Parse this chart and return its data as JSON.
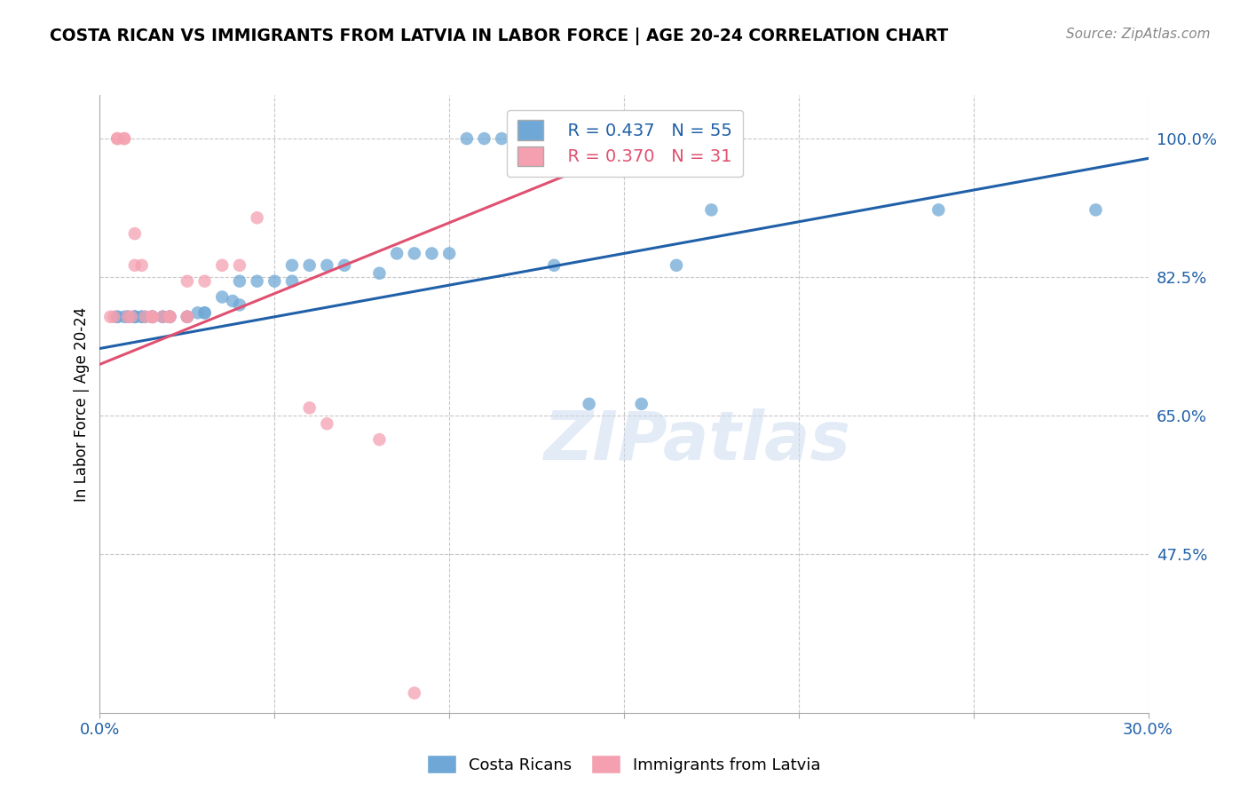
{
  "title": "COSTA RICAN VS IMMIGRANTS FROM LATVIA IN LABOR FORCE | AGE 20-24 CORRELATION CHART",
  "source": "Source: ZipAtlas.com",
  "ylabel": "In Labor Force | Age 20-24",
  "legend_label_blue": "Costa Ricans",
  "legend_label_pink": "Immigrants from Latvia",
  "watermark": "ZIPatlas",
  "blue_R": 0.437,
  "blue_N": 55,
  "pink_R": 0.37,
  "pink_N": 31,
  "blue_color": "#6fa8d6",
  "pink_color": "#f4a0b0",
  "blue_line_color": "#2060a8",
  "pink_line_color": "#e05070",
  "xmin": 0.0,
  "xmax": 0.3,
  "ymin": 0.275,
  "ymax": 1.055,
  "ytick_positions": [
    1.0,
    0.825,
    0.65,
    0.475
  ],
  "ytick_labels": [
    "100.0%",
    "82.5%",
    "65.0%",
    "47.5%"
  ],
  "xtick_positions": [
    0.0,
    0.05,
    0.1,
    0.15,
    0.2,
    0.25,
    0.3
  ],
  "xtick_labels_show": [
    "0.0%",
    "",
    "",
    "",
    "",
    "",
    "30.0%"
  ],
  "blue_line_x": [
    0.0,
    0.3
  ],
  "blue_line_y": [
    0.735,
    0.975
  ],
  "pink_line_x": [
    0.0,
    0.165
  ],
  "pink_line_y": [
    0.715,
    1.01
  ],
  "blue_scatter_x": [
    0.005,
    0.005,
    0.007,
    0.008,
    0.008,
    0.01,
    0.01,
    0.01,
    0.01,
    0.012,
    0.012,
    0.013,
    0.015,
    0.015,
    0.015,
    0.015,
    0.015,
    0.018,
    0.018,
    0.02,
    0.02,
    0.02,
    0.02,
    0.025,
    0.025,
    0.028,
    0.03,
    0.03,
    0.035,
    0.038,
    0.04,
    0.04,
    0.045,
    0.05,
    0.055,
    0.055,
    0.06,
    0.065,
    0.07,
    0.08,
    0.085,
    0.09,
    0.095,
    0.1,
    0.105,
    0.11,
    0.115,
    0.12,
    0.13,
    0.14,
    0.155,
    0.165,
    0.175,
    0.24,
    0.285
  ],
  "blue_scatter_y": [
    0.775,
    0.775,
    0.775,
    0.775,
    0.775,
    0.775,
    0.775,
    0.775,
    0.775,
    0.775,
    0.775,
    0.775,
    0.775,
    0.775,
    0.775,
    0.775,
    0.775,
    0.775,
    0.775,
    0.775,
    0.775,
    0.775,
    0.775,
    0.775,
    0.775,
    0.78,
    0.78,
    0.78,
    0.8,
    0.795,
    0.82,
    0.79,
    0.82,
    0.82,
    0.84,
    0.82,
    0.84,
    0.84,
    0.84,
    0.83,
    0.855,
    0.855,
    0.855,
    0.855,
    1.0,
    1.0,
    1.0,
    1.0,
    0.84,
    0.665,
    0.665,
    0.84,
    0.91,
    0.91,
    0.91
  ],
  "pink_scatter_x": [
    0.003,
    0.004,
    0.005,
    0.005,
    0.007,
    0.007,
    0.008,
    0.009,
    0.01,
    0.01,
    0.012,
    0.013,
    0.015,
    0.015,
    0.015,
    0.015,
    0.018,
    0.02,
    0.02,
    0.02,
    0.025,
    0.025,
    0.025,
    0.03,
    0.035,
    0.04,
    0.045,
    0.06,
    0.065,
    0.08,
    0.09
  ],
  "pink_scatter_y": [
    0.775,
    0.775,
    1.0,
    1.0,
    1.0,
    1.0,
    0.775,
    0.775,
    0.88,
    0.84,
    0.84,
    0.775,
    0.775,
    0.775,
    0.775,
    0.775,
    0.775,
    0.775,
    0.775,
    0.775,
    0.82,
    0.775,
    0.775,
    0.82,
    0.84,
    0.84,
    0.9,
    0.66,
    0.64,
    0.62,
    0.3
  ]
}
